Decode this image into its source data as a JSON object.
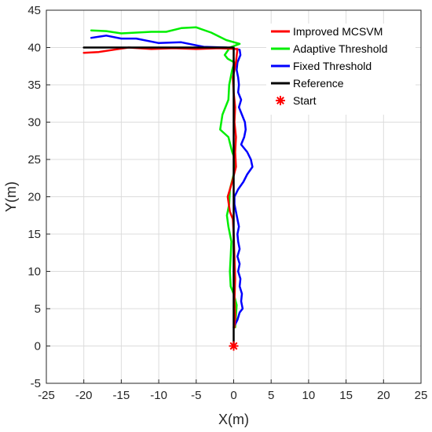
{
  "chart_data": {
    "type": "line",
    "xlabel": "X(m)",
    "ylabel": "Y(m)",
    "xlim": [
      -25,
      25
    ],
    "ylim": [
      -5,
      45
    ],
    "xticks": [
      -25,
      -20,
      -15,
      -10,
      -5,
      0,
      5,
      10,
      15,
      20,
      25
    ],
    "yticks": [
      -5,
      0,
      5,
      10,
      15,
      20,
      25,
      30,
      35,
      40,
      45
    ],
    "grid": true,
    "legend_position": "top-right",
    "series": [
      {
        "name": "Improved MCSVM",
        "color": "#ff0000",
        "points": [
          [
            0.1,
            2.5
          ],
          [
            0.2,
            4
          ],
          [
            0.1,
            6
          ],
          [
            0.2,
            9
          ],
          [
            0.1,
            12
          ],
          [
            0.0,
            15
          ],
          [
            -0.1,
            17
          ],
          [
            -0.5,
            18
          ],
          [
            -0.8,
            20
          ],
          [
            -0.2,
            22
          ],
          [
            0.3,
            24
          ],
          [
            0.2,
            26
          ],
          [
            0.3,
            28
          ],
          [
            0.1,
            30
          ],
          [
            0.2,
            32
          ],
          [
            0.0,
            34
          ],
          [
            -0.1,
            36
          ],
          [
            0.3,
            38
          ],
          [
            0.5,
            39.8
          ],
          [
            -2,
            39.9
          ],
          [
            -5,
            39.8
          ],
          [
            -8,
            39.9
          ],
          [
            -11,
            39.8
          ],
          [
            -14,
            40.0
          ],
          [
            -16,
            39.7
          ],
          [
            -18,
            39.4
          ],
          [
            -20,
            39.3
          ]
        ]
      },
      {
        "name": "Adaptive Threshold",
        "color": "#00ee00",
        "points": [
          [
            0.2,
            2.5
          ],
          [
            0.3,
            4
          ],
          [
            0.4,
            5.5
          ],
          [
            0.0,
            7
          ],
          [
            -0.4,
            8
          ],
          [
            -0.5,
            10
          ],
          [
            -0.4,
            12
          ],
          [
            -0.3,
            14
          ],
          [
            -0.7,
            16
          ],
          [
            -0.9,
            17.5
          ],
          [
            -0.6,
            19
          ],
          [
            -0.5,
            21
          ],
          [
            0.0,
            23
          ],
          [
            0.2,
            25
          ],
          [
            -0.2,
            26
          ],
          [
            -0.7,
            28
          ],
          [
            -1.8,
            29
          ],
          [
            -1.5,
            31
          ],
          [
            -0.7,
            33
          ],
          [
            -0.6,
            35
          ],
          [
            -0.2,
            37
          ],
          [
            0.1,
            38
          ],
          [
            -0.8,
            38.5
          ],
          [
            -1.2,
            39
          ],
          [
            -0.5,
            40
          ],
          [
            0.8,
            40.5
          ],
          [
            -1,
            41
          ],
          [
            -3,
            42
          ],
          [
            -5,
            42.7
          ],
          [
            -7,
            42.6
          ],
          [
            -9,
            42.1
          ],
          [
            -11,
            42.1
          ],
          [
            -13,
            42.0
          ],
          [
            -15,
            41.9
          ],
          [
            -17,
            42.2
          ],
          [
            -19,
            42.3
          ]
        ]
      },
      {
        "name": "Fixed Threshold",
        "color": "#0000ff",
        "points": [
          [
            0.0,
            2.5
          ],
          [
            0.5,
            3.5
          ],
          [
            0.8,
            4.5
          ],
          [
            1.2,
            5
          ],
          [
            1.0,
            6
          ],
          [
            1.1,
            7
          ],
          [
            0.8,
            8
          ],
          [
            0.9,
            9
          ],
          [
            0.6,
            10
          ],
          [
            0.8,
            11
          ],
          [
            0.5,
            12
          ],
          [
            0.8,
            13
          ],
          [
            0.6,
            14
          ],
          [
            0.5,
            15
          ],
          [
            0.7,
            16
          ],
          [
            0.5,
            17
          ],
          [
            0.3,
            18
          ],
          [
            0.1,
            19
          ],
          [
            0.1,
            20
          ],
          [
            0.6,
            21
          ],
          [
            1.3,
            22
          ],
          [
            1.8,
            23
          ],
          [
            2.5,
            24
          ],
          [
            2.3,
            25
          ],
          [
            1.8,
            26
          ],
          [
            1.0,
            27
          ],
          [
            1.4,
            28
          ],
          [
            1.6,
            29
          ],
          [
            1.5,
            30
          ],
          [
            1.1,
            31
          ],
          [
            0.7,
            32
          ],
          [
            1.0,
            33
          ],
          [
            0.6,
            34
          ],
          [
            0.7,
            35
          ],
          [
            0.6,
            36
          ],
          [
            0.4,
            37
          ],
          [
            0.5,
            38
          ],
          [
            0.9,
            39
          ],
          [
            0.8,
            39.7
          ],
          [
            -1,
            40
          ],
          [
            -4,
            40.1
          ],
          [
            -7,
            40.7
          ],
          [
            -10,
            40.6
          ],
          [
            -13,
            41.2
          ],
          [
            -15,
            41.2
          ],
          [
            -17,
            41.6
          ],
          [
            -19,
            41.3
          ]
        ]
      },
      {
        "name": "Reference",
        "color": "#000000",
        "points": [
          [
            0,
            0
          ],
          [
            0,
            40
          ],
          [
            -20,
            40
          ]
        ]
      },
      {
        "name": "Start",
        "color": "#ff0000",
        "marker": "asterisk",
        "points": [
          [
            0,
            0
          ]
        ]
      }
    ]
  }
}
